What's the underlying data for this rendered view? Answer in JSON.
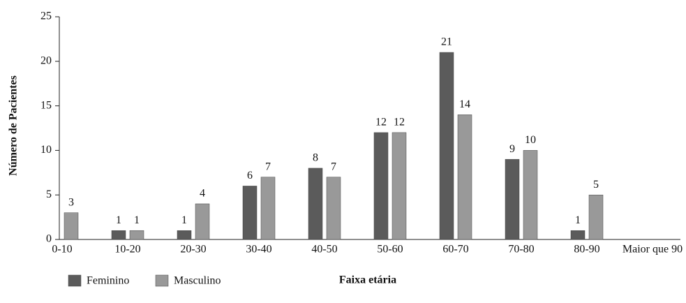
{
  "chart_data": {
    "type": "bar",
    "x_label": "Faixa etária",
    "y_label": "Número de Pacientes",
    "categories": [
      "0-10",
      "10-20",
      "20-30",
      "30-40",
      "40-50",
      "50-60",
      "60-70",
      "70-80",
      "80-90",
      "Maior que 90"
    ],
    "series": [
      {
        "name": "Feminino",
        "color": "#5b5b5b",
        "values": [
          null,
          1,
          1,
          6,
          8,
          12,
          21,
          9,
          1,
          null
        ]
      },
      {
        "name": "Masculino",
        "color": "#999999",
        "values": [
          3,
          1,
          4,
          7,
          7,
          12,
          14,
          10,
          5,
          null
        ]
      }
    ],
    "ylim": [
      0,
      25
    ],
    "yticks": [
      0,
      5,
      10,
      15,
      20,
      25
    ]
  }
}
